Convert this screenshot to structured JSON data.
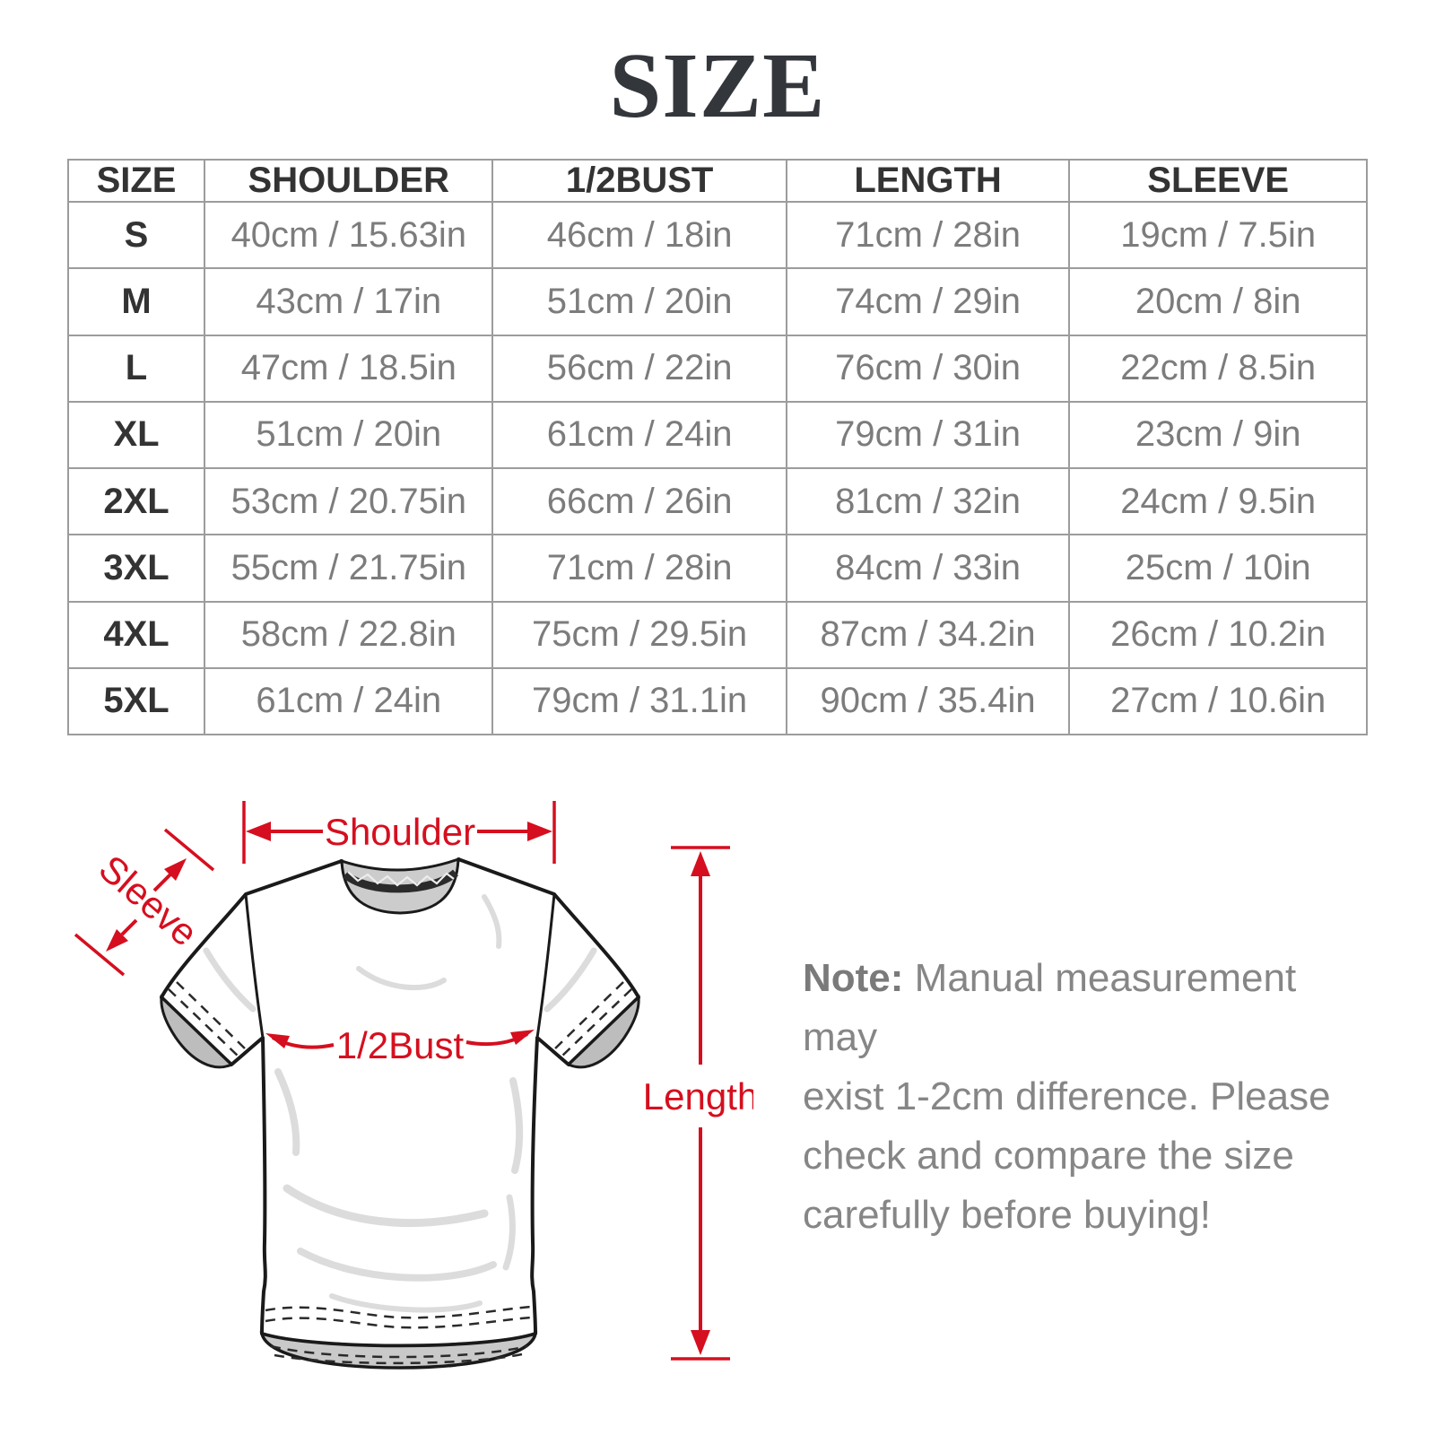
{
  "title": "SIZE",
  "size_table": {
    "columns": [
      "SIZE",
      "SHOULDER",
      "1/2BUST",
      "LENGTH",
      "SLEEVE"
    ],
    "rows": [
      {
        "size": "S",
        "cells": [
          "40cm / 15.63in",
          "46cm / 18in",
          "71cm / 28in",
          "19cm / 7.5in"
        ]
      },
      {
        "size": "M",
        "cells": [
          "43cm / 17in",
          "51cm / 20in",
          "74cm / 29in",
          "20cm / 8in"
        ]
      },
      {
        "size": "L",
        "cells": [
          "47cm / 18.5in",
          "56cm / 22in",
          "76cm / 30in",
          "22cm / 8.5in"
        ]
      },
      {
        "size": "XL",
        "cells": [
          "51cm / 20in",
          "61cm / 24in",
          "79cm / 31in",
          "23cm / 9in"
        ]
      },
      {
        "size": "2XL",
        "cells": [
          "53cm / 20.75in",
          "66cm / 26in",
          "81cm / 32in",
          "24cm / 9.5in"
        ]
      },
      {
        "size": "3XL",
        "cells": [
          "55cm / 21.75in",
          "71cm / 28in",
          "84cm / 33in",
          "25cm / 10in"
        ]
      },
      {
        "size": "4XL",
        "cells": [
          "58cm / 22.8in",
          "75cm / 29.5in",
          "87cm / 34.2in",
          "26cm / 10.2in"
        ]
      },
      {
        "size": "5XL",
        "cells": [
          "61cm / 24in",
          "79cm / 31.1in",
          "90cm / 35.4in",
          "27cm / 10.6in"
        ]
      }
    ]
  },
  "diagram": {
    "annotation_color": "#d50f1f",
    "labels": {
      "shoulder": "Shoulder",
      "sleeve": "Sleeve",
      "half_bust": "1/2Bust",
      "length": "Length"
    }
  },
  "note": {
    "label": "Note:",
    "lines": [
      "Manual measurement may",
      "exist 1-2cm difference. Please",
      "check and compare the size",
      "carefully before buying!"
    ]
  }
}
